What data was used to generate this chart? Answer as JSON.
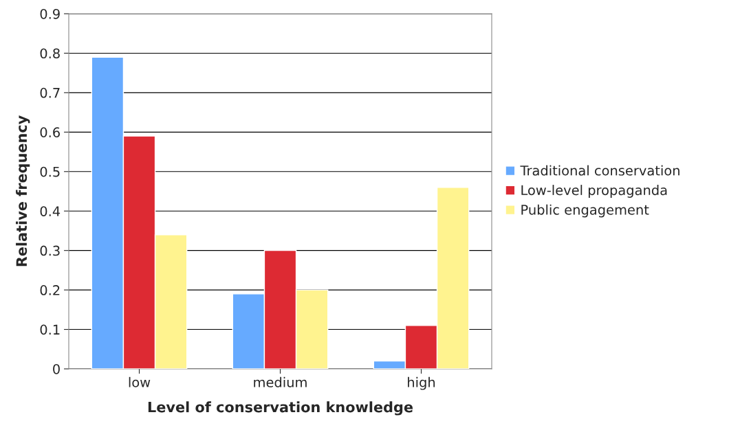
{
  "chart_data": {
    "type": "bar",
    "xlabel": "Level of conservation knowledge",
    "ylabel": "Relative frequency",
    "categories": [
      "low",
      "medium",
      "high"
    ],
    "series": [
      {
        "name": "Traditional conservation",
        "color": "#66aaff",
        "values": [
          0.79,
          0.19,
          0.02
        ]
      },
      {
        "name": "Low-level propaganda",
        "color": "#dd2a33",
        "values": [
          0.59,
          0.3,
          0.11
        ]
      },
      {
        "name": "Public engagement",
        "color": "#fff38f",
        "values": [
          0.34,
          0.2,
          0.46
        ]
      }
    ],
    "ylim": [
      0,
      0.9
    ],
    "yticks": [
      0,
      0.1,
      0.2,
      0.3,
      0.4,
      0.5,
      0.6,
      0.7,
      0.8,
      0.9
    ],
    "grid": "y",
    "legend": "right"
  }
}
